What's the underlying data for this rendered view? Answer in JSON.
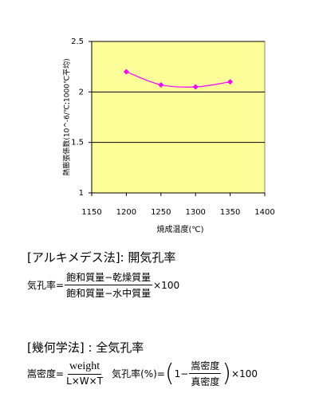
{
  "chart_data": {
    "type": "line",
    "y_label": "熱膨張係数(10^-6/℃;1000℃平均)",
    "x_label": "焼成温度(℃)",
    "x": [
      1200,
      1250,
      1300,
      1350
    ],
    "series": [
      {
        "color": "#ff00ff",
        "values": [
          2.2,
          2.07,
          2.05,
          2.1
        ]
      }
    ],
    "xlim": [
      1150,
      1400
    ],
    "xticks": [
      1150,
      1200,
      1250,
      1300,
      1350,
      1400
    ],
    "ylim": [
      1,
      2.5
    ],
    "yticks": [
      1,
      1.5,
      2,
      2.5
    ],
    "grid": true,
    "plot_background": "#ffff99"
  },
  "archimedes": {
    "heading": "[アルキメデス法]: 開気孔率",
    "lhs": "気孔率=",
    "numerator": "飽和質量−乾燥質量",
    "denominator": "飽和質量−水中質量",
    "factor": "×100"
  },
  "geometric": {
    "heading": "[幾何学法] : 全気孔率",
    "lhs": "嵩密度=",
    "numerator": "weight",
    "denominator": "L×W×T",
    "lhs2": "気孔率(%)=",
    "one_minus": "1−",
    "numerator2": "嵩密度",
    "denominator2": "真密度",
    "factor": "×100"
  }
}
